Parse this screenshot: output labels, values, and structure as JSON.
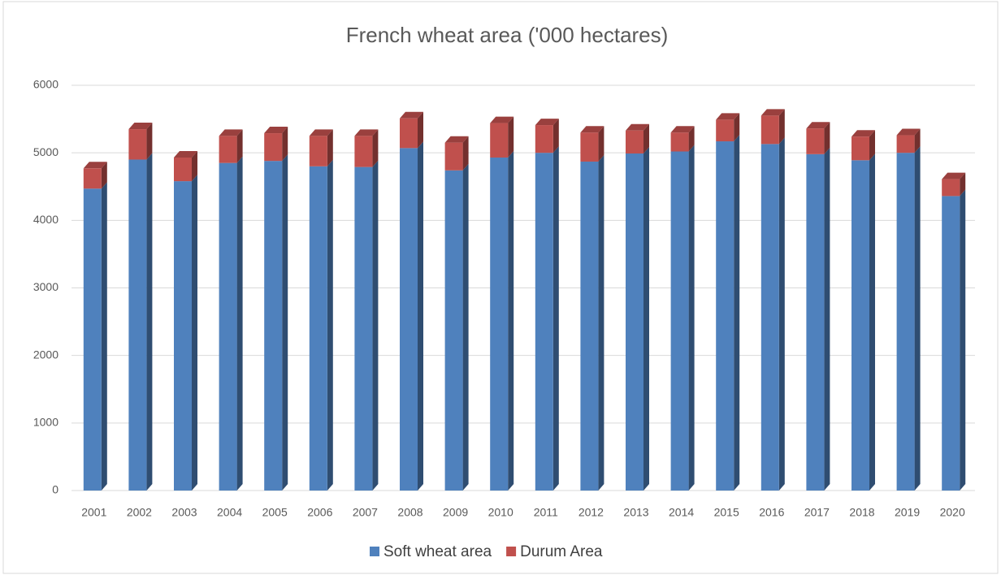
{
  "chart_data": {
    "type": "stacked-bar-3d",
    "title": "French wheat area  ('000 hectares)",
    "categories": [
      "2001",
      "2002",
      "2003",
      "2004",
      "2005",
      "2006",
      "2007",
      "2008",
      "2009",
      "2010",
      "2011",
      "2012",
      "2013",
      "2014",
      "2015",
      "2016",
      "2017",
      "2018",
      "2019",
      "2020"
    ],
    "series": [
      {
        "name": "Soft wheat area",
        "color": "#4f81bd",
        "values": [
          4470,
          4900,
          4580,
          4850,
          4880,
          4800,
          4790,
          5070,
          4740,
          4930,
          5000,
          4870,
          4990,
          5020,
          5170,
          5130,
          4980,
          4890,
          5000,
          4360
        ]
      },
      {
        "name": "Durum Area",
        "color": "#c0504d",
        "values": [
          300,
          450,
          350,
          400,
          410,
          450,
          460,
          440,
          410,
          510,
          410,
          430,
          340,
          280,
          320,
          420,
          380,
          350,
          260,
          250
        ]
      }
    ],
    "ylim": [
      0,
      6000
    ],
    "yticks": [
      0,
      1000,
      2000,
      3000,
      4000,
      5000,
      6000
    ],
    "grid": true,
    "legend": "bottom"
  }
}
